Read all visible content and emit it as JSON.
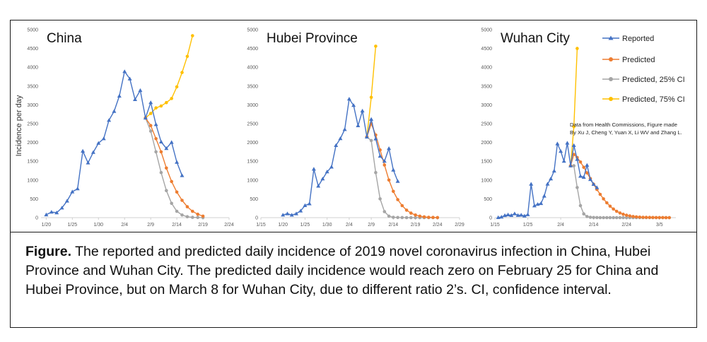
{
  "y_axis_label": "Incidence per day",
  "legend": {
    "reported": "Reported",
    "predicted": "Predicted",
    "predicted_25": "Predicted, 25% CI",
    "predicted_75": "Predicted, 75%  CI"
  },
  "colors": {
    "reported": "#4472c4",
    "predicted": "#ed7d31",
    "predicted_25": "#a5a5a5",
    "predicted_75": "#ffc000",
    "axis": "#d0d0d0",
    "text": "#595959"
  },
  "note": {
    "line1": "Data from Health Commissions, Figure made",
    "line2": "By Xu J, Cheng Y, Yuan X, Li WV and Zhang L."
  },
  "caption": {
    "label": "Figure.",
    "text": " The reported and predicted daily incidence of 2019 novel coronavirus infection in China, Hubei Province and Wuhan City. The predicted daily incidence would reach zero on February 25 for China and Hubei Province, but on March 8 for Wuhan City, due to different ratio 2’s. CI, confidence interval."
  },
  "chart_data": [
    {
      "type": "line",
      "title": "China",
      "x_unit": "day of year 2020 (Jan 1 = 1)",
      "xlim": [
        19,
        55
      ],
      "ylim": [
        0,
        5000
      ],
      "y_ticks": [
        0,
        500,
        1000,
        1500,
        2000,
        2500,
        3000,
        3500,
        4000,
        4500,
        5000
      ],
      "x_ticks": [
        {
          "x": 20,
          "label": "1/20"
        },
        {
          "x": 25,
          "label": "1/25"
        },
        {
          "x": 30,
          "label": "1/30"
        },
        {
          "x": 35,
          "label": "2/4"
        },
        {
          "x": 40,
          "label": "2/9"
        },
        {
          "x": 45,
          "label": "2/14"
        },
        {
          "x": 50,
          "label": "2/19"
        },
        {
          "x": 55,
          "label": "2/24"
        }
      ],
      "series": [
        {
          "name": "Reported",
          "key": "reported",
          "x": [
            20,
            21,
            22,
            23,
            24,
            25,
            26,
            27,
            28,
            29,
            30,
            31,
            32,
            33,
            34,
            35,
            36,
            37,
            38,
            39,
            40,
            41,
            42,
            43,
            44,
            45,
            46
          ],
          "y": [
            77,
            149,
            131,
            259,
            444,
            688,
            769,
            1771,
            1459,
            1737,
            1982,
            2102,
            2590,
            2829,
            3235,
            3887,
            3694,
            3143,
            3385,
            2652,
            3062,
            2478,
            2015,
            1843,
            2004,
            1475,
            1120
          ]
        },
        {
          "name": "Predicted",
          "key": "predicted",
          "x": [
            39,
            40,
            41,
            42,
            43,
            44,
            45,
            46,
            47,
            48,
            49,
            50
          ],
          "y": [
            2652,
            2450,
            2100,
            1750,
            1320,
            960,
            680,
            460,
            290,
            170,
            90,
            40
          ]
        },
        {
          "name": "Predicted, 25% CI",
          "key": "predicted_25",
          "x": [
            39,
            40,
            41,
            42,
            43,
            44,
            45,
            46,
            47,
            48,
            49,
            50
          ],
          "y": [
            2652,
            2300,
            1750,
            1200,
            720,
            380,
            170,
            70,
            25,
            8,
            3,
            1
          ]
        },
        {
          "name": "Predicted, 75%  CI",
          "key": "predicted_75",
          "x": [
            39,
            40,
            41,
            42,
            43,
            44,
            45,
            46,
            47,
            48
          ],
          "y": [
            2652,
            2770,
            2920,
            2970,
            3060,
            3170,
            3480,
            3860,
            4290,
            4840
          ]
        }
      ]
    },
    {
      "type": "line",
      "title": "Hubei Province",
      "x_unit": "day of year 2020 (Jan 1 = 1)",
      "xlim": [
        15,
        60
      ],
      "ylim": [
        0,
        5000
      ],
      "y_ticks": [
        0,
        500,
        1000,
        1500,
        2000,
        2500,
        3000,
        3500,
        4000,
        4500,
        5000
      ],
      "x_ticks": [
        {
          "x": 15,
          "label": "1/15"
        },
        {
          "x": 20,
          "label": "1/20"
        },
        {
          "x": 25,
          "label": "1/25"
        },
        {
          "x": 30,
          "label": "1/30"
        },
        {
          "x": 35,
          "label": "2/4"
        },
        {
          "x": 40,
          "label": "2/9"
        },
        {
          "x": 45,
          "label": "2/14"
        },
        {
          "x": 50,
          "label": "2/19"
        },
        {
          "x": 55,
          "label": "2/24"
        },
        {
          "x": 60,
          "label": "2/29"
        }
      ],
      "series": [
        {
          "name": "Reported",
          "key": "reported",
          "x": [
            20,
            21,
            22,
            23,
            24,
            25,
            26,
            27,
            28,
            29,
            30,
            31,
            32,
            33,
            34,
            35,
            36,
            37,
            38,
            39,
            40,
            41,
            42,
            43,
            44,
            45,
            46
          ],
          "y": [
            72,
            105,
            69,
            105,
            180,
            323,
            371,
            1291,
            840,
            1032,
            1220,
            1347,
            1921,
            2103,
            2345,
            3156,
            2987,
            2447,
            2841,
            2147,
            2618,
            2097,
            1638,
            1501,
            1843,
            1269,
            968
          ]
        },
        {
          "name": "Predicted",
          "key": "predicted",
          "x": [
            39,
            40,
            41,
            42,
            43,
            44,
            45,
            46,
            47,
            48,
            49,
            50,
            51,
            52,
            53,
            54,
            55
          ],
          "y": [
            2147,
            2500,
            2200,
            1800,
            1400,
            1000,
            700,
            480,
            320,
            200,
            120,
            70,
            40,
            20,
            10,
            5,
            2
          ]
        },
        {
          "name": "Predicted, 25% CI",
          "key": "predicted_25",
          "x": [
            39,
            40,
            41,
            42,
            43,
            44,
            45,
            46,
            47,
            48,
            49,
            50,
            51,
            52,
            53,
            54,
            55
          ],
          "y": [
            2147,
            2050,
            1200,
            500,
            160,
            40,
            10,
            3,
            1,
            0,
            0,
            0,
            0,
            0,
            0,
            0,
            0
          ]
        },
        {
          "name": "Predicted, 75%  CI",
          "key": "predicted_75",
          "x": [
            39,
            40,
            41
          ],
          "y": [
            2147,
            3200,
            4560
          ]
        }
      ]
    },
    {
      "type": "line",
      "title": "Wuhan City",
      "x_unit": "day of year 2020 (Jan 1 = 1)",
      "xlim": [
        15,
        70
      ],
      "ylim": [
        0,
        5000
      ],
      "y_ticks": [
        0,
        500,
        1000,
        1500,
        2000,
        2500,
        3000,
        3500,
        4000,
        4500,
        5000
      ],
      "x_ticks": [
        {
          "x": 15,
          "label": "1/15"
        },
        {
          "x": 25,
          "label": "1/25"
        },
        {
          "x": 35,
          "label": "2/4"
        },
        {
          "x": 45,
          "label": "2/14"
        },
        {
          "x": 55,
          "label": "2/24"
        },
        {
          "x": 65,
          "label": "3/5"
        }
      ],
      "series": [
        {
          "name": "Reported",
          "key": "reported",
          "x": [
            16,
            17,
            18,
            19,
            20,
            21,
            22,
            23,
            24,
            25,
            26,
            27,
            28,
            29,
            30,
            31,
            32,
            33,
            34,
            35,
            36,
            37,
            38,
            39,
            40,
            41,
            42,
            43,
            44,
            45,
            46
          ],
          "y": [
            4,
            17,
            59,
            77,
            60,
            105,
            62,
            70,
            46,
            80,
            892,
            315,
            356,
            378,
            576,
            894,
            1033,
            1242,
            1967,
            1766,
            1501,
            1985,
            1379,
            1921,
            1552,
            1104,
            1075,
            1396,
            1016,
            888,
            800
          ]
        },
        {
          "name": "Predicted",
          "key": "predicted",
          "x": [
            38,
            39,
            40,
            41,
            42,
            43,
            44,
            45,
            46,
            47,
            48,
            49,
            50,
            51,
            52,
            53,
            54,
            55,
            56,
            57,
            58,
            59,
            60,
            61,
            62,
            63,
            64,
            65,
            66,
            67,
            68
          ],
          "y": [
            1379,
            1680,
            1600,
            1480,
            1340,
            1190,
            1040,
            890,
            750,
            620,
            500,
            395,
            305,
            230,
            170,
            125,
            90,
            64,
            45,
            31,
            21,
            14,
            10,
            7,
            5,
            3,
            2,
            1,
            1,
            0,
            0
          ]
        },
        {
          "name": "Predicted, 25% CI",
          "key": "predicted_25",
          "x": [
            38,
            39,
            40,
            41,
            42,
            43,
            44,
            45,
            46,
            47,
            48,
            49,
            50,
            51,
            52,
            53,
            54,
            55,
            56,
            57,
            58,
            59,
            60,
            61,
            62,
            63,
            64,
            65,
            66,
            67,
            68
          ],
          "y": [
            1379,
            1380,
            800,
            320,
            100,
            30,
            10,
            3,
            1,
            0,
            0,
            0,
            0,
            0,
            0,
            0,
            0,
            0,
            0,
            0,
            0,
            0,
            0,
            0,
            0,
            0,
            0,
            0,
            0,
            0,
            0
          ]
        },
        {
          "name": "Predicted, 75%  CI",
          "key": "predicted_75",
          "x": [
            38,
            39,
            40
          ],
          "y": [
            1379,
            2420,
            4500
          ]
        }
      ]
    }
  ]
}
